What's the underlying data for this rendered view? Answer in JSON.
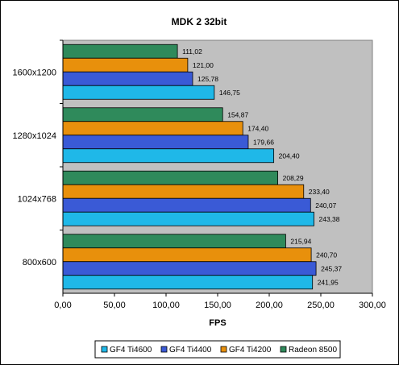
{
  "chart_data": {
    "type": "bar",
    "orientation": "horizontal",
    "title": "MDK 2 32bit",
    "xlabel": "FPS",
    "ylabel": "",
    "xlim": [
      0,
      300
    ],
    "x_ticks": [
      "0,00",
      "50,00",
      "100,00",
      "150,00",
      "200,00",
      "250,00",
      "300,00"
    ],
    "categories": [
      "1600x1200",
      "1280x1024",
      "1024x768",
      "800x600"
    ],
    "series": [
      {
        "name": "Radeon 8500",
        "color": "#2f8a5b",
        "values": [
          111.02,
          154.87,
          208.29,
          215.94
        ],
        "labels": [
          "111,02",
          "154,87",
          "208,29",
          "215,94"
        ]
      },
      {
        "name": "GF4 Ti4200",
        "color": "#e8900c",
        "values": [
          121.0,
          174.4,
          233.4,
          240.7
        ],
        "labels": [
          "121,00",
          "174,40",
          "233,40",
          "240,70"
        ]
      },
      {
        "name": "GF4 Ti4400",
        "color": "#3a5ad6",
        "values": [
          125.78,
          179.66,
          240.07,
          245.37
        ],
        "labels": [
          "125,78",
          "179,66",
          "240,07",
          "245,37"
        ]
      },
      {
        "name": "GF4 Ti4600",
        "color": "#1fb8e8",
        "values": [
          146.75,
          204.4,
          243.38,
          241.95
        ],
        "labels": [
          "146,75",
          "204,40",
          "243,38",
          "241,95"
        ]
      }
    ],
    "legend_order": [
      "GF4 Ti4600",
      "GF4 Ti4400",
      "GF4 Ti4200",
      "Radeon 8500"
    ],
    "legend_position": "bottom",
    "grid": false,
    "plot_background": "#c0c0c0"
  }
}
